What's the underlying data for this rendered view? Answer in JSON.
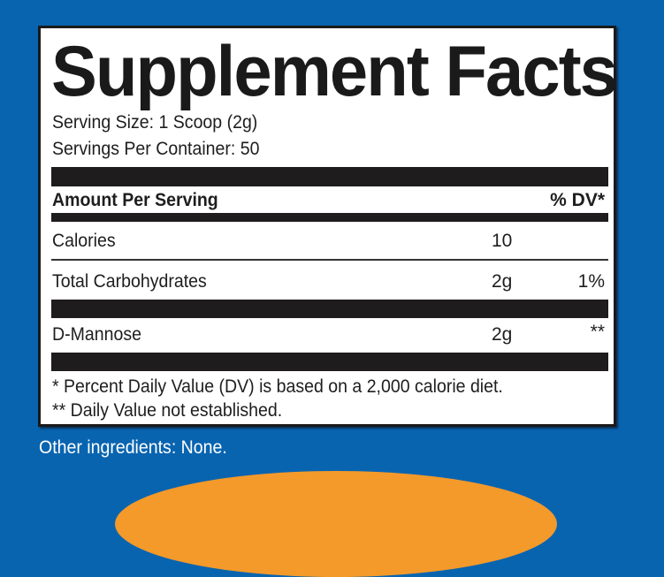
{
  "title": "Supplement Facts",
  "serving_size": "Serving Size: 1 Scoop (2g)",
  "servings_per_container": "Servings Per Container: 50",
  "header": {
    "amount_per_serving": "Amount Per Serving",
    "dv": "% DV*"
  },
  "rows": [
    {
      "name": "Calories",
      "amount": "10",
      "dv": ""
    },
    {
      "name": "Total Carbohydrates",
      "amount": "2g",
      "dv": "1%"
    },
    {
      "name": "D-Mannose",
      "amount": "2g",
      "dv": "**"
    }
  ],
  "footnotes": [
    "* Percent Daily Value (DV) is based on a 2,000 calorie diet.",
    "** Daily Value not established."
  ],
  "other_ingredients": "Other ingredients: None.",
  "colors": {
    "background": "#0964b0",
    "accent": "#f39a2a",
    "bars": "#1e1c1c"
  }
}
